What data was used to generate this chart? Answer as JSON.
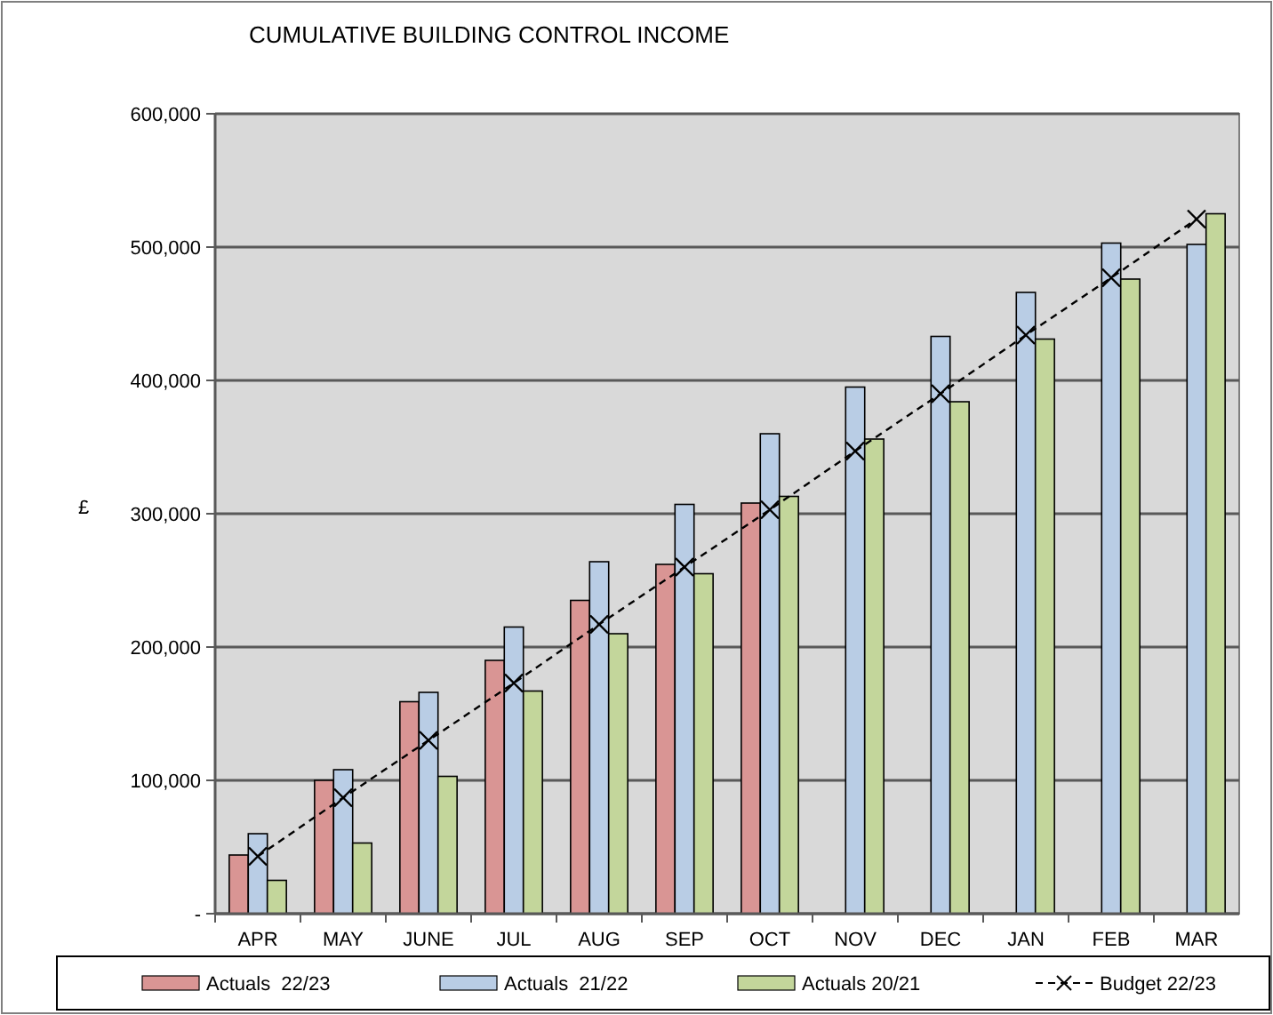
{
  "chart_data": {
    "type": "bar",
    "title": "CUMULATIVE BUILDING CONTROL INCOME",
    "ylabel": "£",
    "categories": [
      "APR",
      "MAY",
      "JUNE",
      "JUL",
      "AUG",
      "SEP",
      "OCT",
      "NOV",
      "DEC",
      "JAN",
      "FEB",
      "MAR"
    ],
    "series": [
      {
        "name": "Actuals  22/23",
        "color": "#d99594",
        "values": [
          44000,
          100000,
          159000,
          190000,
          235000,
          262000,
          308000,
          null,
          null,
          null,
          null,
          null
        ]
      },
      {
        "name": "Actuals  21/22",
        "color": "#b9cde5",
        "values": [
          60000,
          108000,
          166000,
          215000,
          264000,
          307000,
          360000,
          395000,
          433000,
          466000,
          503000,
          502000
        ]
      },
      {
        "name": "Actuals 20/21",
        "color": "#c3d69b",
        "values": [
          25000,
          53000,
          103000,
          167000,
          210000,
          255000,
          313000,
          356000,
          384000,
          431000,
          476000,
          525000
        ]
      },
      {
        "name": "Budget 22/23",
        "type": "line",
        "color": "#000000",
        "marker": "cross",
        "line_style": "dashed",
        "values": [
          43000,
          87000,
          130000,
          173000,
          217000,
          260000,
          303000,
          347000,
          390000,
          434000,
          477000,
          521000
        ]
      }
    ],
    "ylim": [
      0,
      600000
    ],
    "yticks": [
      {
        "value": 0,
        "label": "-"
      },
      {
        "value": 100000,
        "label": "100,000"
      },
      {
        "value": 200000,
        "label": "200,000"
      },
      {
        "value": 300000,
        "label": "300,000"
      },
      {
        "value": 400000,
        "label": "400,000"
      },
      {
        "value": 500000,
        "label": "500,000"
      },
      {
        "value": 600000,
        "label": "600,000"
      }
    ],
    "grid": "y",
    "legend": "bottom"
  }
}
